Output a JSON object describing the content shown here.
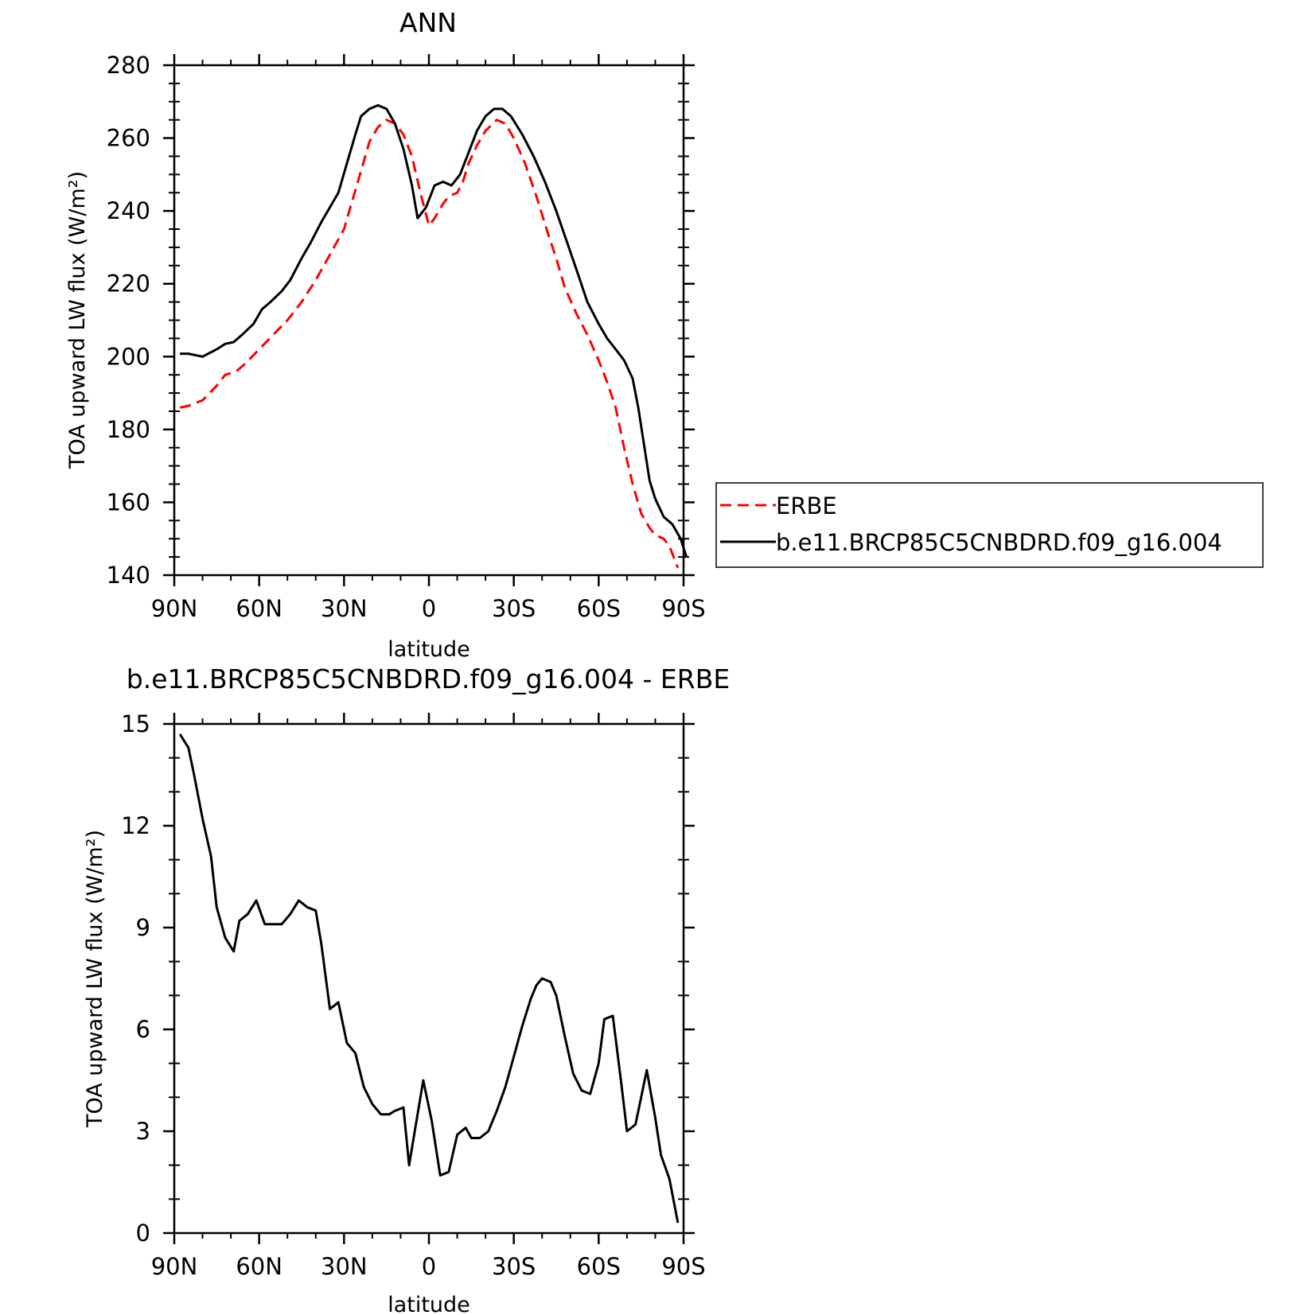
{
  "chart_data": [
    {
      "type": "line",
      "title": "ANN",
      "xlabel": "latitude",
      "ylabel": "TOA upward LW flux (W/m²)",
      "xlim": [
        -90,
        90
      ],
      "ylim": [
        140,
        280
      ],
      "x_ticks": [
        -90,
        -60,
        -30,
        0,
        30,
        60,
        90
      ],
      "x_tick_labels": [
        "90N",
        "60N",
        "30N",
        "0",
        "30S",
        "60S",
        "90S"
      ],
      "y_ticks": [
        140,
        160,
        180,
        200,
        220,
        240,
        260,
        280
      ],
      "y_tick_labels": [
        "140",
        "160",
        "180",
        "200",
        "220",
        "240",
        "260",
        "280"
      ],
      "legend_position": "right",
      "series": [
        {
          "name": "ERBE",
          "color": "#ff0000",
          "dash": "dashed",
          "points": [
            [
              -88,
              186
            ],
            [
              -85,
              186.5
            ],
            [
              -80,
              188
            ],
            [
              -75,
              192
            ],
            [
              -72,
              195
            ],
            [
              -68,
              196
            ],
            [
              -65,
              198
            ],
            [
              -60,
              202
            ],
            [
              -55,
              206
            ],
            [
              -50,
              210
            ],
            [
              -45,
              215
            ],
            [
              -40,
              221
            ],
            [
              -35,
              228
            ],
            [
              -30,
              235
            ],
            [
              -27,
              243
            ],
            [
              -24,
              251
            ],
            [
              -21,
              259
            ],
            [
              -18,
              263
            ],
            [
              -15,
              265
            ],
            [
              -12,
              264
            ],
            [
              -9,
              261
            ],
            [
              -6,
              255
            ],
            [
              -3,
              245
            ],
            [
              0,
              236
            ],
            [
              2,
              238
            ],
            [
              5,
              242
            ],
            [
              7,
              244
            ],
            [
              10,
              245
            ],
            [
              12,
              248
            ],
            [
              14,
              253
            ],
            [
              17,
              258
            ],
            [
              20,
              262
            ],
            [
              24,
              265
            ],
            [
              27,
              264
            ],
            [
              30,
              260
            ],
            [
              34,
              253
            ],
            [
              38,
              244
            ],
            [
              42,
              234
            ],
            [
              45,
              227
            ],
            [
              48,
              219
            ],
            [
              52,
              212
            ],
            [
              56,
              206
            ],
            [
              60,
              199
            ],
            [
              63,
              193
            ],
            [
              66,
              186
            ],
            [
              69,
              175
            ],
            [
              72,
              165
            ],
            [
              75,
              157
            ],
            [
              78,
              153
            ],
            [
              80,
              151
            ],
            [
              83,
              150
            ],
            [
              85,
              148
            ],
            [
              88,
              142
            ]
          ]
        },
        {
          "name": "b.e11.BRCP85C5CNBDRD.f09_g16.004",
          "color": "#000000",
          "dash": "solid",
          "points": [
            [
              -88,
              200.8
            ],
            [
              -85,
              200.8
            ],
            [
              -80,
              200
            ],
            [
              -75,
              202
            ],
            [
              -72,
              203.5
            ],
            [
              -69,
              204
            ],
            [
              -66,
              206
            ],
            [
              -62,
              209
            ],
            [
              -59,
              213
            ],
            [
              -56,
              215
            ],
            [
              -52,
              218
            ],
            [
              -49,
              221
            ],
            [
              -45,
              227
            ],
            [
              -42,
              231
            ],
            [
              -38,
              237
            ],
            [
              -35,
              241
            ],
            [
              -32,
              245
            ],
            [
              -29,
              253
            ],
            [
              -26,
              261
            ],
            [
              -24,
              266
            ],
            [
              -21,
              268
            ],
            [
              -18,
              269
            ],
            [
              -15,
              268
            ],
            [
              -12,
              264
            ],
            [
              -9,
              257
            ],
            [
              -6,
              247
            ],
            [
              -4,
              238
            ],
            [
              -1,
              241
            ],
            [
              2,
              247
            ],
            [
              5,
              248
            ],
            [
              8,
              247
            ],
            [
              11,
              250
            ],
            [
              14,
              256
            ],
            [
              17,
              262
            ],
            [
              20,
              266
            ],
            [
              23,
              268
            ],
            [
              26,
              268
            ],
            [
              29,
              266
            ],
            [
              33,
              261
            ],
            [
              37,
              255
            ],
            [
              41,
              248
            ],
            [
              45,
              240
            ],
            [
              49,
              231
            ],
            [
              53,
              222
            ],
            [
              56,
              215
            ],
            [
              60,
              209
            ],
            [
              63,
              205
            ],
            [
              66,
              202
            ],
            [
              69,
              199
            ],
            [
              72,
              194
            ],
            [
              74,
              186
            ],
            [
              76,
              176
            ],
            [
              78,
              166
            ],
            [
              80,
              161
            ],
            [
              83,
              156
            ],
            [
              86,
              154
            ],
            [
              89,
              150
            ],
            [
              91,
              145
            ]
          ]
        }
      ]
    },
    {
      "type": "line",
      "title": "b.e11.BRCP85C5CNBDRD.f09_g16.004 - ERBE",
      "xlabel": "latitude",
      "ylabel": "TOA upward LW flux (W/m²)",
      "xlim": [
        -90,
        90
      ],
      "ylim": [
        0,
        15
      ],
      "x_ticks": [
        -90,
        -60,
        -30,
        0,
        30,
        60,
        90
      ],
      "x_tick_labels": [
        "90N",
        "60N",
        "30N",
        "0",
        "30S",
        "60S",
        "90S"
      ],
      "y_ticks": [
        0,
        3,
        6,
        9,
        12,
        15
      ],
      "y_tick_labels": [
        "0",
        "3",
        "6",
        "9",
        "12",
        "15"
      ],
      "series": [
        {
          "color": "#000000",
          "dash": "solid",
          "points": [
            [
              -88,
              14.7
            ],
            [
              -85,
              14.3
            ],
            [
              -83,
              13.5
            ],
            [
              -80,
              12.2
            ],
            [
              -77,
              11.1
            ],
            [
              -75,
              9.6
            ],
            [
              -72,
              8.7
            ],
            [
              -69,
              8.3
            ],
            [
              -67,
              9.2
            ],
            [
              -64,
              9.4
            ],
            [
              -61,
              9.8
            ],
            [
              -58,
              9.1
            ],
            [
              -55,
              9.1
            ],
            [
              -52,
              9.1
            ],
            [
              -49,
              9.4
            ],
            [
              -46,
              9.8
            ],
            [
              -43,
              9.6
            ],
            [
              -40,
              9.5
            ],
            [
              -38,
              8.5
            ],
            [
              -35,
              6.6
            ],
            [
              -32,
              6.8
            ],
            [
              -29,
              5.6
            ],
            [
              -26,
              5.3
            ],
            [
              -23,
              4.3
            ],
            [
              -20,
              3.8
            ],
            [
              -17,
              3.5
            ],
            [
              -14,
              3.5
            ],
            [
              -12,
              3.6
            ],
            [
              -9,
              3.7
            ],
            [
              -7,
              2
            ],
            [
              -5,
              3
            ],
            [
              -2,
              4.5
            ],
            [
              1,
              3.3
            ],
            [
              4,
              1.7
            ],
            [
              7,
              1.8
            ],
            [
              10,
              2.9
            ],
            [
              13,
              3.1
            ],
            [
              15,
              2.8
            ],
            [
              18,
              2.8
            ],
            [
              21,
              3
            ],
            [
              24,
              3.6
            ],
            [
              27,
              4.3
            ],
            [
              30,
              5.2
            ],
            [
              33,
              6.1
            ],
            [
              36,
              6.9
            ],
            [
              38,
              7.3
            ],
            [
              40,
              7.5
            ],
            [
              43,
              7.4
            ],
            [
              45,
              7
            ],
            [
              48,
              5.8
            ],
            [
              51,
              4.7
            ],
            [
              54,
              4.2
            ],
            [
              57,
              4.1
            ],
            [
              60,
              5
            ],
            [
              62,
              6.3
            ],
            [
              65,
              6.4
            ],
            [
              68,
              4.4
            ],
            [
              70,
              3
            ],
            [
              73,
              3.2
            ],
            [
              77,
              4.8
            ],
            [
              80,
              3.4
            ],
            [
              82,
              2.3
            ],
            [
              85,
              1.6
            ],
            [
              88,
              0.3
            ]
          ]
        }
      ]
    }
  ]
}
